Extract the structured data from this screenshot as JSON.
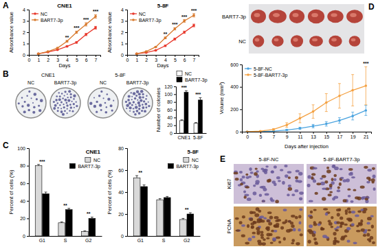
{
  "figure": {
    "panel_letters": [
      "A",
      "B",
      "C",
      "D",
      "E"
    ],
    "plates": {
      "lines": [
        "CNE1",
        "5-8F"
      ],
      "labels": [
        "NC",
        "BART7-3p",
        "NC",
        "BART7-3p"
      ]
    },
    "tumors": {
      "labels": [
        "BART7-3p",
        "NC"
      ]
    },
    "ihc": {
      "columns": [
        "5-8F-NC",
        "5-8F-BART7-3p"
      ],
      "rows": [
        "Ki67",
        "PCNA"
      ]
    }
  },
  "chart_data": [
    {
      "type": "line",
      "title": "CNE1",
      "x": [
        1,
        2,
        3,
        4,
        5,
        6,
        7
      ],
      "xlim": [
        0,
        7.5
      ],
      "xticks": [
        0,
        1,
        2,
        3,
        4,
        5,
        6,
        7
      ],
      "x_label": "Days",
      "y_label": "Absorbance value",
      "ylim": [
        0,
        4
      ],
      "yticks": [
        0,
        1,
        2,
        3,
        4
      ],
      "legend": "top-left",
      "marker": "circle",
      "series": [
        {
          "name": "NC",
          "color": "#e8382c",
          "values": [
            0.1,
            0.25,
            0.45,
            0.75,
            1.1,
            1.8,
            2.4
          ],
          "errors": [
            0.02,
            0.03,
            0.04,
            0.05,
            0.07,
            0.1,
            0.12
          ]
        },
        {
          "name": "BART7-3p",
          "color": "#d87a2e",
          "values": [
            0.1,
            0.3,
            0.6,
            1.2,
            2.0,
            2.7,
            3.4
          ],
          "errors": [
            0.02,
            0.03,
            0.05,
            0.08,
            0.1,
            0.15,
            0.15
          ]
        }
      ],
      "annotations": [
        null,
        null,
        null,
        "**",
        "***",
        "***",
        "***"
      ]
    },
    {
      "type": "line",
      "title": "5-8F",
      "x": [
        1,
        2,
        3,
        4,
        5,
        6,
        7
      ],
      "xlim": [
        0,
        7.5
      ],
      "xticks": [
        0,
        1,
        2,
        3,
        4,
        5,
        6,
        7
      ],
      "x_label": "Days",
      "y_label": "Absorbance value",
      "ylim": [
        0,
        4
      ],
      "yticks": [
        0,
        1,
        2,
        3,
        4
      ],
      "legend": "top-left",
      "marker": "circle",
      "series": [
        {
          "name": "NC",
          "color": "#e8382c",
          "values": [
            0.1,
            0.2,
            0.4,
            0.8,
            1.4,
            2.0,
            2.6
          ],
          "errors": [
            0.02,
            0.03,
            0.04,
            0.06,
            0.08,
            0.1,
            0.12
          ]
        },
        {
          "name": "BART7-3p",
          "color": "#d87a2e",
          "values": [
            0.1,
            0.3,
            0.7,
            1.5,
            2.3,
            3.0,
            3.5
          ],
          "errors": [
            0.02,
            0.03,
            0.05,
            0.08,
            0.1,
            0.12,
            0.15
          ]
        }
      ],
      "annotations": [
        null,
        null,
        null,
        "**",
        "***",
        "***",
        "***"
      ]
    },
    {
      "type": "bar",
      "categories": [
        "CNE1",
        "5-8F"
      ],
      "y_label": "Number of colonies",
      "ylim": [
        0,
        120
      ],
      "yticks": [
        0,
        20,
        40,
        60,
        80,
        100,
        120
      ],
      "legend": "top-left",
      "series": [
        {
          "name": "NC",
          "color": "#ffffff",
          "values": [
            32,
            25
          ],
          "errors": [
            2,
            2
          ]
        },
        {
          "name": "BART7-3p",
          "color": "#000000",
          "values": [
            105,
            85
          ],
          "errors": [
            4,
            6
          ]
        }
      ],
      "annotations": [
        "***",
        "***"
      ]
    },
    {
      "type": "bar",
      "title": "CNE1",
      "categories": [
        "G1",
        "S",
        "G2"
      ],
      "y_label": "Percent of cells (%)",
      "ylim": [
        0,
        100
      ],
      "yticks": [
        0,
        20,
        40,
        60,
        80,
        100
      ],
      "legend": "top-right",
      "series": [
        {
          "name": "NC",
          "color": "#d9d9d9",
          "values": [
            80,
            15,
            5
          ],
          "errors": [
            1.5,
            1,
            0.8
          ]
        },
        {
          "name": "BART7-3p",
          "color": "#000000",
          "values": [
            48,
            30,
            20
          ],
          "errors": [
            2,
            1.5,
            1.5
          ]
        }
      ],
      "annotations": [
        "***",
        "**",
        "**"
      ]
    },
    {
      "type": "bar",
      "title": "5-8F",
      "categories": [
        "G1",
        "S",
        "G2"
      ],
      "y_label": "Percent of cells (%)",
      "ylim": [
        0,
        80
      ],
      "yticks": [
        0,
        20,
        40,
        60,
        80
      ],
      "legend": "top-right",
      "series": [
        {
          "name": "NC",
          "color": "#d9d9d9",
          "values": [
            53,
            33,
            15
          ],
          "errors": [
            2,
            1,
            1
          ]
        },
        {
          "name": "BART7-3p",
          "color": "#000000",
          "values": [
            45,
            35,
            20
          ],
          "errors": [
            1.5,
            1,
            1.2
          ]
        }
      ],
      "annotations": [
        "**",
        null,
        "**"
      ]
    },
    {
      "type": "line",
      "categories": [
        "0",
        "5",
        "7",
        "9",
        "11",
        "13",
        "15",
        "17",
        "19",
        "21"
      ],
      "x_label": "Days after injection",
      "y_label": "Volume (mm³)",
      "ylim": [
        0,
        600
      ],
      "yticks": [
        0,
        200,
        400,
        600
      ],
      "legend": "top-left",
      "marker": "circle",
      "series": [
        {
          "name": "5-8F-NC",
          "color": "#4aa3df",
          "values": [
            0,
            0,
            5,
            15,
            30,
            50,
            70,
            100,
            140,
            190
          ],
          "errors": [
            0,
            0,
            3,
            6,
            10,
            15,
            20,
            25,
            35,
            45
          ]
        },
        {
          "name": "5-8F-BART7-3p",
          "color": "#f4a142",
          "values": [
            0,
            5,
            20,
            60,
            120,
            180,
            260,
            320,
            370,
            410
          ],
          "errors": [
            0,
            3,
            8,
            20,
            40,
            60,
            80,
            110,
            140,
            170
          ]
        }
      ],
      "annotations": [
        null,
        null,
        null,
        null,
        null,
        null,
        null,
        null,
        null,
        "***"
      ]
    }
  ]
}
